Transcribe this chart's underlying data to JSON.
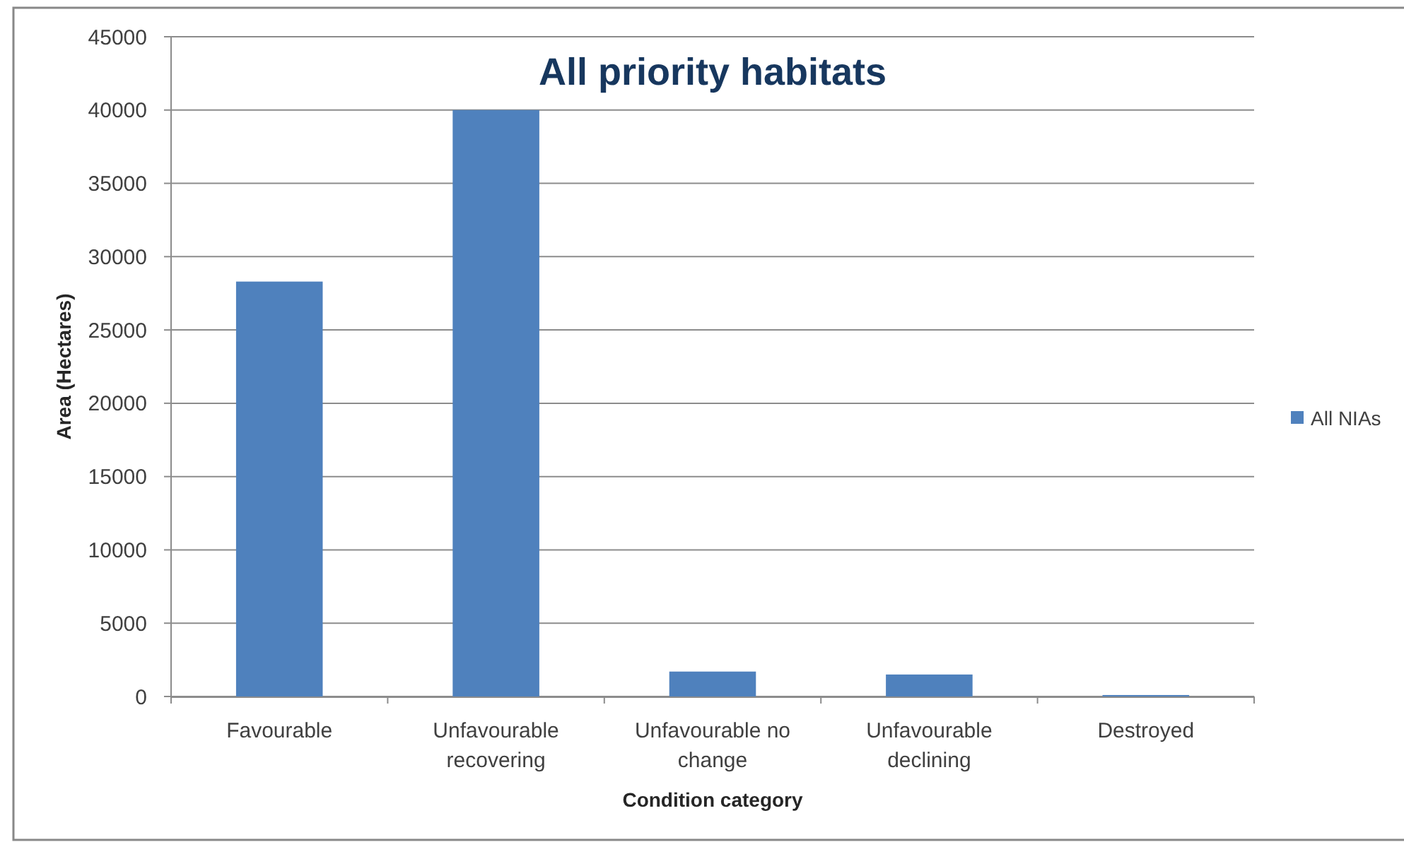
{
  "chart_data": {
    "type": "bar",
    "title": "All priority habitats",
    "xlabel": "Condition category",
    "ylabel": "Area (Hectares)",
    "categories": [
      "Favourable",
      "Unfavourable recovering",
      "Unfavourable no change",
      "Unfavourable declining",
      "Destroyed"
    ],
    "series": [
      {
        "name": "All NIAs",
        "color": "#4f81bd",
        "values": [
          28300,
          40000,
          1700,
          1500,
          100
        ]
      }
    ],
    "ylim": [
      0,
      45000
    ],
    "yticks": [
      0,
      5000,
      10000,
      15000,
      20000,
      25000,
      30000,
      35000,
      40000,
      45000
    ],
    "grid": "y",
    "legend": "right"
  }
}
